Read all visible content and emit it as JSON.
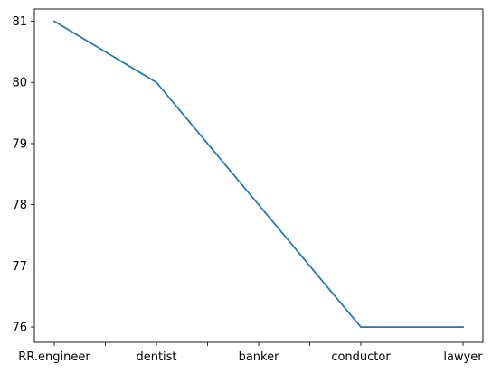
{
  "chart_data": {
    "type": "line",
    "categories": [
      "RR.engineer",
      "dentist",
      "banker",
      "conductor",
      "lawyer"
    ],
    "series": [
      {
        "values": [
          81,
          80,
          78,
          76,
          76
        ],
        "color": "#1f77b4"
      }
    ],
    "yticks": [
      76,
      77,
      78,
      79,
      80,
      81
    ],
    "ylim": [
      75.75,
      81.2
    ],
    "grid": false,
    "title": "",
    "xlabel": "",
    "ylabel": ""
  }
}
